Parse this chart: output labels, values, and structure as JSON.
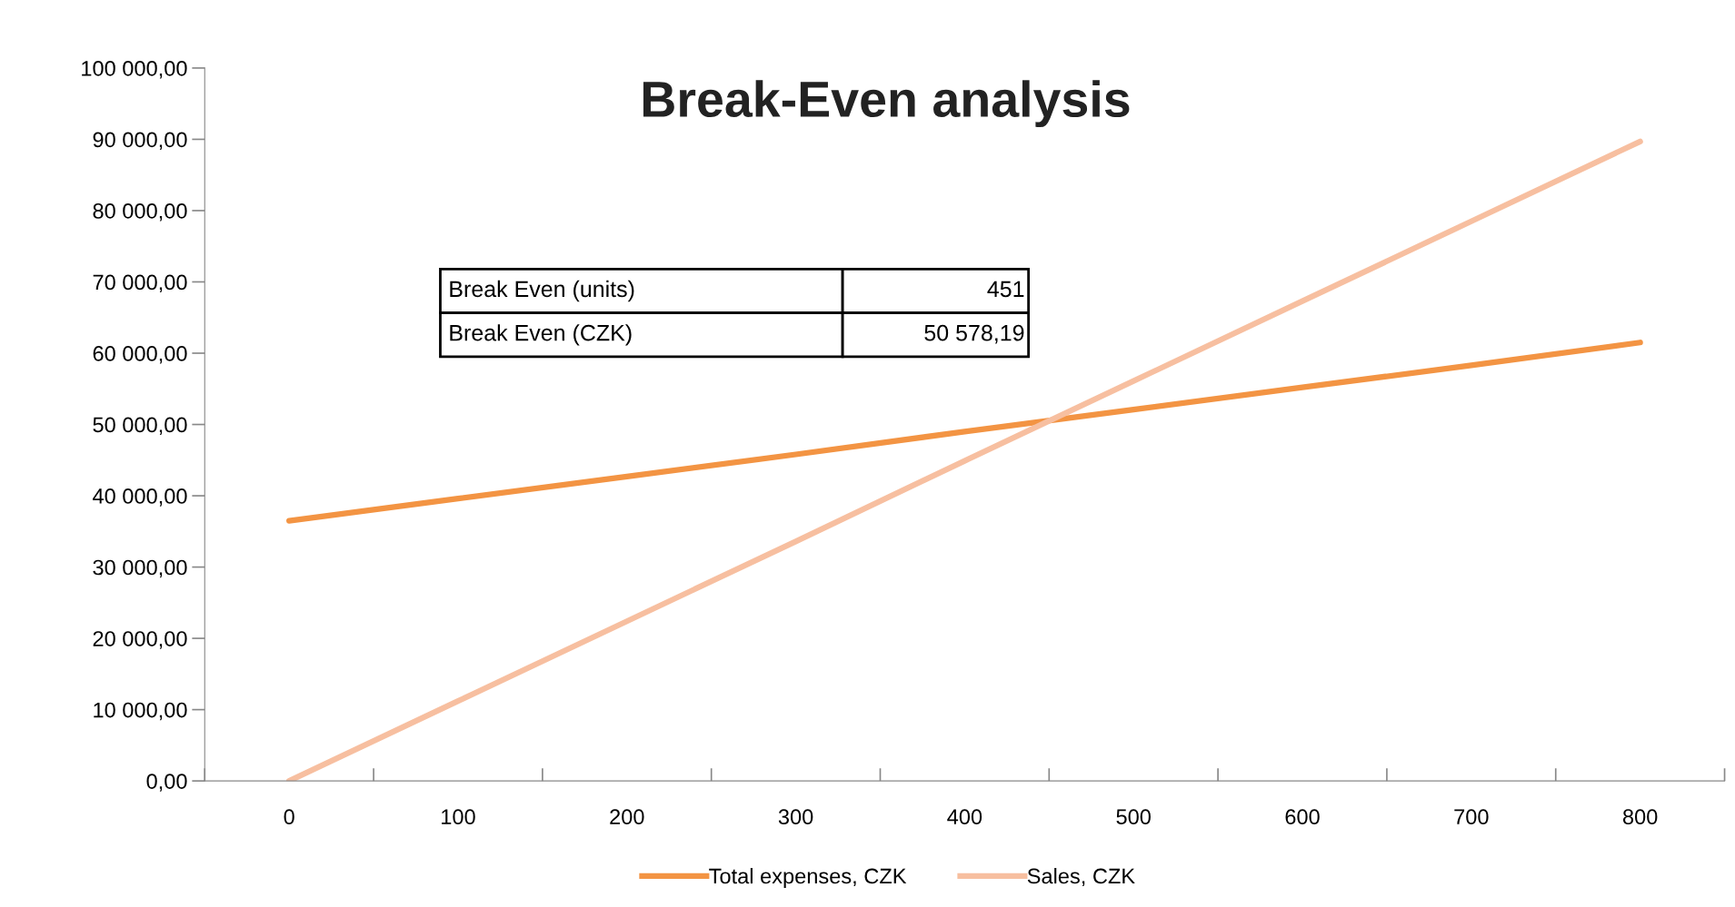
{
  "chart_data": {
    "type": "line",
    "title": "Break-Even analysis",
    "categories": [
      "0",
      "100",
      "200",
      "300",
      "400",
      "500",
      "600",
      "700",
      "800"
    ],
    "series": [
      {
        "name": "Total expenses, CZK",
        "color": "#f39443",
        "values": [
          36500,
          39600,
          42700,
          45800,
          49000,
          52100,
          55200,
          58300,
          61500
        ]
      },
      {
        "name": "Sales, CZK",
        "color": "#f7bfa0",
        "values": [
          0,
          11200,
          22400,
          33600,
          44900,
          56100,
          67300,
          78500,
          89700
        ]
      }
    ],
    "ylim": [
      0,
      100000
    ],
    "yticks": [
      {
        "value": 0,
        "label": "0,00"
      },
      {
        "value": 10000,
        "label": "10 000,00"
      },
      {
        "value": 20000,
        "label": "20 000,00"
      },
      {
        "value": 30000,
        "label": "30 000,00"
      },
      {
        "value": 40000,
        "label": "40 000,00"
      },
      {
        "value": 50000,
        "label": "50 000,00"
      },
      {
        "value": 60000,
        "label": "60 000,00"
      },
      {
        "value": 70000,
        "label": "70 000,00"
      },
      {
        "value": 80000,
        "label": "80 000,00"
      },
      {
        "value": 90000,
        "label": "90 000,00"
      },
      {
        "value": 100000,
        "label": "100 000,00"
      }
    ],
    "annotations": [
      "Break Even (units)",
      "451",
      "Break Even (CZK)",
      "50 578,19"
    ],
    "grid": false,
    "legend": "bottom",
    "marker": "none",
    "line_style": "solid"
  }
}
